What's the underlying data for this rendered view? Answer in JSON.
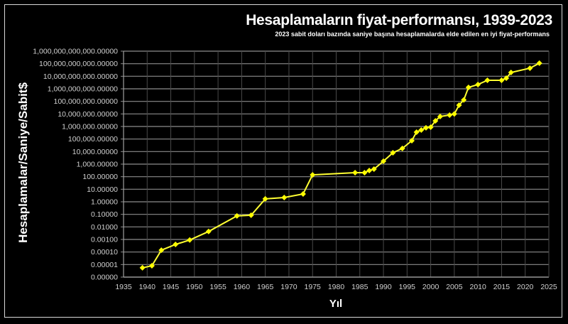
{
  "chart_data": {
    "type": "line",
    "title": "Hesaplamaların fiyat-performansı, 1939-2023",
    "subtitle": "2023 sabit doları bazında saniye başına hesaplamalarda elde edilen en iyi fiyat-performans",
    "xlabel": "Yıl",
    "ylabel": "Hesaplamalar/Saniye/Sabit$",
    "yscale": "log",
    "xlim": [
      1935,
      2025
    ],
    "ylim": [
      1e-06,
      1000000000000
    ],
    "grid": true,
    "legend": null,
    "x_ticks": [
      "1935",
      "1940",
      "1945",
      "1950",
      "1955",
      "1960",
      "1965",
      "1970",
      "1975",
      "1980",
      "1985",
      "1990",
      "1995",
      "2000",
      "2005",
      "2010",
      "2015",
      "2020",
      "2025"
    ],
    "y_ticks": [
      "1,000,000,000,000.00000",
      "100,000,000,000.00000",
      "10,000,000,000.00000",
      "1,000,000,000.00000",
      "100,000,000.00000",
      "10,000,000.00000",
      "1,000,000.00000",
      "100,000.00000",
      "10,000.00000",
      "1,000.00000",
      "100.00000",
      "10.00000",
      "1.00000",
      "0.10000",
      "0.01000",
      "0.00100",
      "0.00010",
      "0.00001",
      "0.00000"
    ],
    "series": [
      {
        "name": "Fiyat-performans",
        "color": "#ffff33",
        "x": [
          1939,
          1941,
          1943,
          1946,
          1949,
          1953,
          1959,
          1962,
          1965,
          1969,
          1973,
          1975,
          1984,
          1986,
          1987,
          1988,
          1990,
          1992,
          1994,
          1996,
          1997,
          1998,
          1999,
          2000,
          2001,
          2002,
          2004,
          2005,
          2006,
          2007,
          2008,
          2010,
          2012,
          2015,
          2016,
          2017,
          2021,
          2023
        ],
        "values": [
          5.5e-06,
          8e-06,
          0.00014,
          0.0004,
          0.0009,
          0.0043,
          0.075,
          0.085,
          1.7,
          2.2,
          4.2,
          140,
          210,
          210,
          310,
          400,
          1700,
          8100,
          17800,
          74000,
          355000,
          525000,
          780000,
          880000,
          2800000,
          6200000,
          8100000,
          10000000,
          50000000,
          130000000,
          1300000000,
          2200000000,
          4800000000,
          4800000000,
          7100000000,
          20000000000,
          44000000000,
          110000000000
        ]
      }
    ]
  },
  "colors": {
    "background": "#000000",
    "grid": "#8c8c8c",
    "line": "#ffff33",
    "marker": "#ffff00",
    "text": "#ffffff"
  }
}
